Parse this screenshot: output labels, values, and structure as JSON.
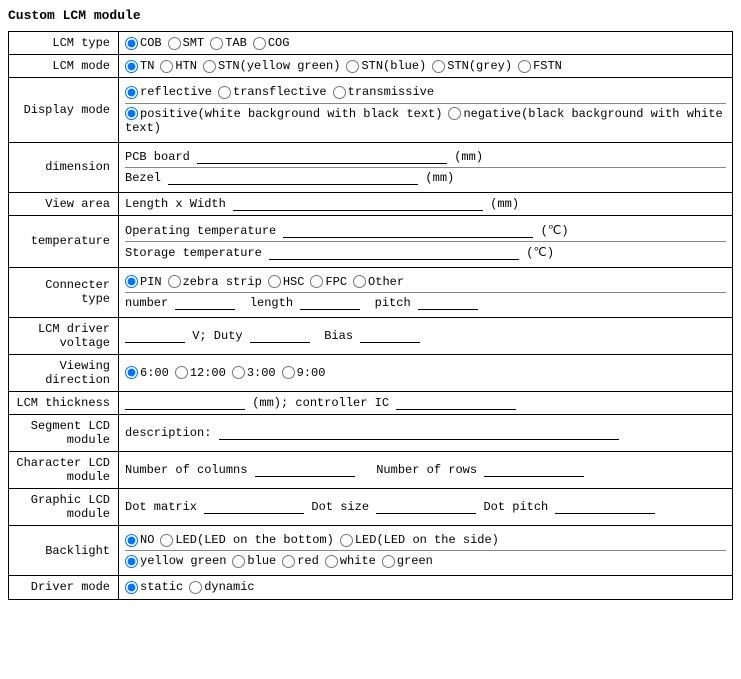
{
  "title": "Custom LCM module",
  "rows": {
    "lcm_type": {
      "label": "LCM type",
      "options": [
        "COB",
        "SMT",
        "TAB",
        "COG"
      ],
      "selected": "COB"
    },
    "lcm_mode": {
      "label": "LCM mode",
      "options": [
        "TN",
        "HTN",
        "STN(yellow green)",
        "STN(blue)",
        "STN(grey)",
        "FSTN"
      ],
      "selected": "TN"
    },
    "display_mode": {
      "label": "Display mode",
      "row1_options": [
        "reflective",
        "transflective",
        "transmissive"
      ],
      "row1_selected": "reflective",
      "row2_options": [
        "positive(white background with black text)",
        "negative(black background with white text)"
      ],
      "row2_selected": "positive(white background with black text)"
    },
    "dimension": {
      "label": "dimension",
      "pcb_label": "PCB board",
      "bezel_label": "Bezel",
      "unit": "(mm)"
    },
    "view_area": {
      "label": "View area",
      "text": "Length x Width",
      "unit": "(mm)"
    },
    "temperature": {
      "label": "temperature",
      "op_label": "Operating temperature",
      "st_label": "Storage temperature",
      "unit": "(℃)"
    },
    "connector": {
      "label": "Connecter type",
      "options": [
        "PIN",
        "zebra strip",
        "HSC",
        "FPC",
        "Other"
      ],
      "selected": "PIN",
      "number_label": "number",
      "length_label": "length",
      "pitch_label": "pitch"
    },
    "driver_voltage": {
      "label": "LCM driver voltage",
      "v_label": "V; Duty",
      "bias_label": "Bias"
    },
    "viewing_direction": {
      "label": "Viewing direction",
      "options": [
        "6:00",
        "12:00",
        "3:00",
        "9:00"
      ],
      "selected": "6:00"
    },
    "thickness": {
      "label": "LCM thickness",
      "mid": "(mm); controller IC"
    },
    "segment": {
      "label": "Segment LCD module",
      "desc_label": "description:"
    },
    "character": {
      "label": "Character LCD module",
      "cols_label": "Number of columns",
      "rows_label": "Number of rows"
    },
    "graphic": {
      "label": "Graphic LCD module",
      "matrix_label": "Dot matrix",
      "size_label": "Dot size",
      "pitch_label": "Dot pitch"
    },
    "backlight": {
      "label": "Backlight",
      "row1_options": [
        "NO",
        "LED(LED on the bottom)",
        "LED(LED on the side)"
      ],
      "row1_selected": "NO",
      "row2_options": [
        "yellow green",
        "blue",
        "red",
        "white",
        "green"
      ],
      "row2_selected": "yellow green"
    },
    "driver_mode": {
      "label": "Driver mode",
      "options": [
        "static",
        "dynamic"
      ],
      "selected": "static"
    }
  }
}
